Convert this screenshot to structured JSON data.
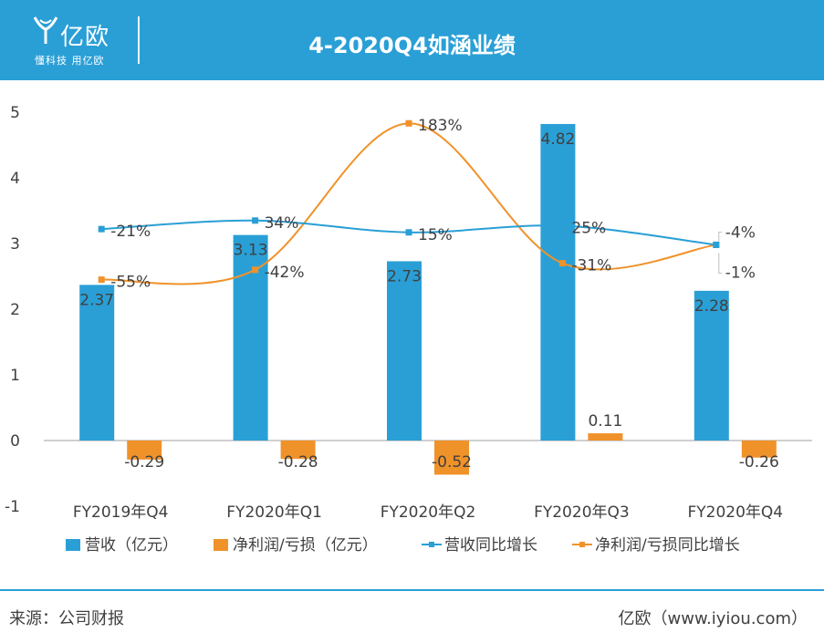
{
  "header": {
    "logo_name": "亿欧",
    "slogan": "懂科技 用亿欧",
    "title": "4-2020Q4如涵业绩"
  },
  "footer": {
    "source": "来源：公司财报",
    "credit": "亿欧（www.iyiou.com）"
  },
  "colors": {
    "header": "#2a9fd6",
    "revenue": "#2a9fd6",
    "profit": "#f0922a",
    "text": "#404040",
    "grid": "#bfbfbf"
  },
  "chart_data": {
    "type": "bar",
    "categories": [
      "FY2019年Q4",
      "FY2020年Q1",
      "FY2020年Q2",
      "FY2020年Q3",
      "FY2020年Q4"
    ],
    "ylim": [
      -1,
      5
    ],
    "yticks": [
      -1,
      0,
      1,
      2,
      3,
      4,
      5
    ],
    "series": [
      {
        "name": "营收（亿元）",
        "type": "bar",
        "values": [
          2.37,
          3.13,
          2.73,
          4.82,
          2.28
        ],
        "labels": [
          "2.37",
          "3.13",
          "2.73",
          "4.82",
          "2.28"
        ]
      },
      {
        "name": "净利润/亏损（亿元）",
        "type": "bar",
        "values": [
          -0.29,
          -0.28,
          -0.52,
          0.11,
          -0.26
        ],
        "labels": [
          "-0.29",
          "-0.28",
          "-0.52",
          "0.11",
          "-0.26"
        ]
      },
      {
        "name": "营收同比增长",
        "type": "line",
        "values": [
          3.22,
          3.35,
          3.17,
          3.27,
          2.98
        ],
        "labels": [
          "-21%",
          "34%",
          "15%",
          "25%",
          "-4%"
        ]
      },
      {
        "name": "净利润/亏损同比增长",
        "type": "line",
        "values": [
          2.45,
          2.6,
          4.83,
          2.7,
          2.98
        ],
        "labels": [
          "-55%",
          "-42%",
          "183%",
          "-31%",
          "-1%"
        ]
      }
    ],
    "legend_position": "bottom",
    "grid": false
  }
}
